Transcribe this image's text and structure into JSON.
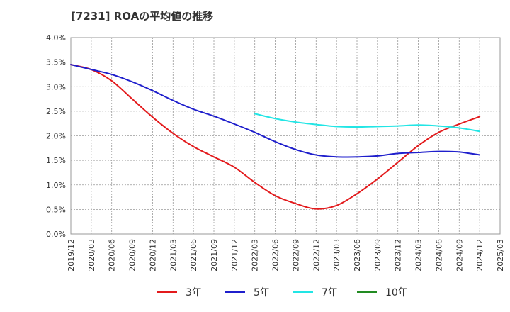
{
  "chart_data": {
    "type": "line",
    "title": "[7231]  ROAの平均値の推移",
    "xlabel": "",
    "ylabel": "",
    "ylim": [
      0,
      4
    ],
    "y_ticks": [
      "0.0%",
      "0.5%",
      "1.0%",
      "1.5%",
      "2.0%",
      "2.5%",
      "3.0%",
      "3.5%",
      "4.0%"
    ],
    "x_ticks": [
      "2019/12",
      "2020/03",
      "2020/06",
      "2020/09",
      "2020/12",
      "2021/03",
      "2021/06",
      "2021/09",
      "2021/12",
      "2022/03",
      "2022/06",
      "2022/09",
      "2022/12",
      "2023/03",
      "2023/06",
      "2023/09",
      "2023/12",
      "2024/03",
      "2024/06",
      "2024/09",
      "2024/12",
      "2025/03"
    ],
    "grid": true,
    "legend_position": "bottom",
    "colors": {
      "3年": "#e31a1c",
      "5年": "#1f1fcc",
      "7年": "#22e5e5",
      "10年": "#228b22"
    },
    "series": [
      {
        "name": "3年",
        "values": [
          3.45,
          3.35,
          3.12,
          2.75,
          2.38,
          2.05,
          1.78,
          1.57,
          1.36,
          1.05,
          0.78,
          0.62,
          0.51,
          0.58,
          0.82,
          1.12,
          1.46,
          1.8,
          2.07,
          2.24,
          2.39,
          null
        ]
      },
      {
        "name": "5年",
        "values": [
          3.45,
          3.35,
          3.25,
          3.1,
          2.92,
          2.72,
          2.54,
          2.4,
          2.24,
          2.07,
          1.88,
          1.72,
          1.61,
          1.57,
          1.57,
          1.59,
          1.64,
          1.66,
          1.68,
          1.67,
          1.61,
          null
        ]
      },
      {
        "name": "7年",
        "values": [
          null,
          null,
          null,
          null,
          null,
          null,
          null,
          null,
          null,
          2.45,
          2.35,
          2.28,
          2.23,
          2.19,
          2.18,
          2.19,
          2.2,
          2.22,
          2.2,
          2.16,
          2.09,
          null
        ]
      },
      {
        "name": "10年",
        "values": [
          null,
          null,
          null,
          null,
          null,
          null,
          null,
          null,
          null,
          null,
          null,
          null,
          null,
          null,
          null,
          null,
          null,
          null,
          null,
          null,
          null,
          null
        ]
      }
    ]
  }
}
